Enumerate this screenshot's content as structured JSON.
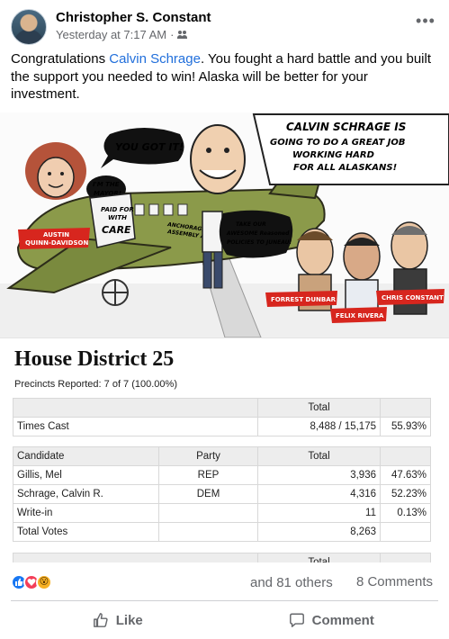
{
  "post": {
    "author": "Christopher S. Constant",
    "timestamp": "Yesterday at 7:17 AM",
    "separator": "·",
    "audience_icon": "friends-icon",
    "more_label": "•••",
    "text_before": "Congratulations ",
    "mention": "Calvin Schrage",
    "text_after": ".  You fought a hard battle and you built the support you needed to win!  Alaska will be better for your investment."
  },
  "cartoon": {
    "headline_lines": [
      "CALVIN SCHRAGE IS",
      "GOING TO DO A GREAT JOB",
      "WORKING HARD",
      "FOR ALL ALASKANS!"
    ],
    "bubble_you_got_it": "YOU GOT IT!",
    "bubble_mayor": [
      "I'M THE",
      "MAYOR!"
    ],
    "sign_paid": [
      "PAID FOR",
      "WITH",
      "CARE"
    ],
    "plane_text": [
      "ANCHORAGE",
      "ASSEMBLY AIR"
    ],
    "bubble_policies": [
      "TAKE OUR",
      "AWESOME Reasoned",
      "POLICIES TO JUNEAU!"
    ],
    "tags": {
      "austin": [
        "AUSTIN",
        "QUINN-DAVIDSON"
      ],
      "forrest": "FORREST DUNBAR",
      "felix": "FELIX RIVERA",
      "chris": "CHRIS CONSTANT"
    }
  },
  "results": {
    "title": "House District 25",
    "precincts": "Precincts Reported: 7 of 7 (100.00%)",
    "table1": {
      "header": [
        "",
        "Total",
        ""
      ],
      "rows": [
        [
          "Times Cast",
          "8,488 / 15,175",
          "55.93%"
        ]
      ]
    },
    "table2": {
      "header": [
        "Candidate",
        "Party",
        "Total",
        ""
      ],
      "rows": [
        [
          "Gillis, Mel",
          "REP",
          "3,936",
          "47.63%"
        ],
        [
          "Schrage, Calvin R.",
          "DEM",
          "4,316",
          "52.23%"
        ],
        [
          "Write-in",
          "",
          "11",
          "0.13%"
        ],
        [
          "Total Votes",
          "",
          "8,263",
          ""
        ]
      ],
      "partial_header": "Total"
    }
  },
  "reactions": {
    "icons": [
      "like-icon",
      "love-icon",
      "wow-icon"
    ],
    "wow_glyph": "😮",
    "others": "and 81 others",
    "comments": "8 Comments"
  },
  "actions": {
    "like_label": "Like",
    "comment_label": "Comment"
  }
}
